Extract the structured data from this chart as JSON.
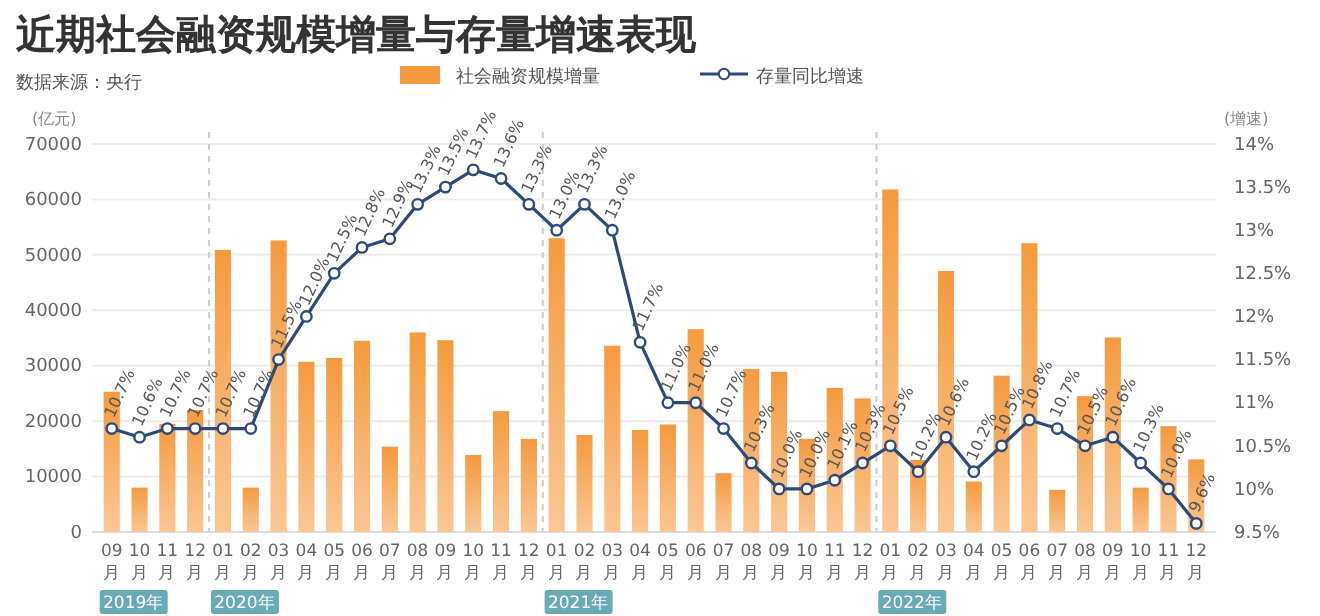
{
  "chart_data": {
    "type": "bar",
    "title": "近期社会融资规模增量与存量增速表现",
    "annotations": [
      "数据来源：央行",
      "2019年",
      "2020年",
      "2021年",
      "2022年"
    ],
    "ylabel": "(亿元)",
    "y2label": "(增速)",
    "categories": [
      "09月",
      "10月",
      "11月",
      "12月",
      "01月",
      "02月",
      "03月",
      "04月",
      "05月",
      "06月",
      "07月",
      "08月",
      "09月",
      "10月",
      "11月",
      "12月",
      "01月",
      "02月",
      "03月",
      "04月",
      "05月",
      "06月",
      "07月",
      "08月",
      "09月",
      "10月",
      "11月",
      "12月",
      "01月",
      "02月",
      "03月",
      "04月",
      "05月",
      "06月",
      "07月",
      "08月",
      "09月",
      "10月",
      "11月",
      "12月"
    ],
    "series": [
      {
        "name": "社会融资规模增量",
        "color": "#f59a3e",
        "values": [
          25300,
          8000,
          19500,
          22000,
          50900,
          8000,
          52600,
          30700,
          31400,
          34500,
          15400,
          36000,
          34600,
          13900,
          21800,
          16800,
          53000,
          17500,
          33600,
          18400,
          19400,
          36600,
          10600,
          29400,
          28900,
          16800,
          26000,
          24100,
          61800,
          13000,
          47100,
          9100,
          28200,
          52100,
          7600,
          24500,
          35100,
          8000,
          19100,
          13100
        ]
      },
      {
        "name": "存量同比增速",
        "type": "line",
        "axis": "y2",
        "color": "#2d4a7a",
        "marker": "circle",
        "values": [
          10.7,
          10.6,
          10.7,
          10.7,
          10.7,
          10.7,
          11.5,
          12.0,
          12.5,
          12.8,
          12.9,
          13.3,
          13.5,
          13.7,
          13.6,
          13.3,
          13.0,
          13.3,
          13.0,
          11.7,
          11.0,
          11.0,
          10.7,
          10.3,
          10.0,
          10.0,
          10.1,
          10.3,
          10.5,
          10.2,
          10.6,
          10.2,
          10.5,
          10.8,
          10.7,
          10.5,
          10.6,
          10.3,
          10.0,
          9.6
        ],
        "value_labels": [
          "10.7%",
          "10.6%",
          "10.7%",
          "10.7%",
          "10.7%",
          "10.7%",
          "11.5%",
          "12.0%",
          "12.5%",
          "12.8%",
          "12.9%",
          "13.3%",
          "13.5%",
          "13.7%",
          "13.6%",
          "13.3%",
          "13.0%",
          "13.3%",
          "13.0%",
          "11.7%",
          "11.0%",
          "11.0%",
          "10.7%",
          "10.3%",
          "10.0%",
          "10.0%",
          "10.1%",
          "10.3%",
          "10.5%",
          "10.2%",
          "10.6%",
          "10.2%",
          "10.5%",
          "10.8%",
          "10.7%",
          "10.5%",
          "10.6%",
          "10.3%",
          "10.0%",
          "9.6%"
        ]
      }
    ],
    "ylim": [
      0,
      70000
    ],
    "yticks": [
      0,
      10000,
      20000,
      30000,
      40000,
      50000,
      60000,
      70000
    ],
    "y2lim": [
      9.5,
      14
    ],
    "y2ticks": [
      {
        "value": 9.5,
        "label": "9.5%"
      },
      {
        "value": 10,
        "label": "10%"
      },
      {
        "value": 10.5,
        "label": "10.5%"
      },
      {
        "value": 11,
        "label": "11%"
      },
      {
        "value": 11.5,
        "label": "11.5%"
      },
      {
        "value": 12,
        "label": "12%"
      },
      {
        "value": 12.5,
        "label": "12.5%"
      },
      {
        "value": 13,
        "label": "13%"
      },
      {
        "value": 13.5,
        "label": "13.5%"
      },
      {
        "value": 14,
        "label": "14%"
      }
    ],
    "grid": "y",
    "legend": "top"
  }
}
